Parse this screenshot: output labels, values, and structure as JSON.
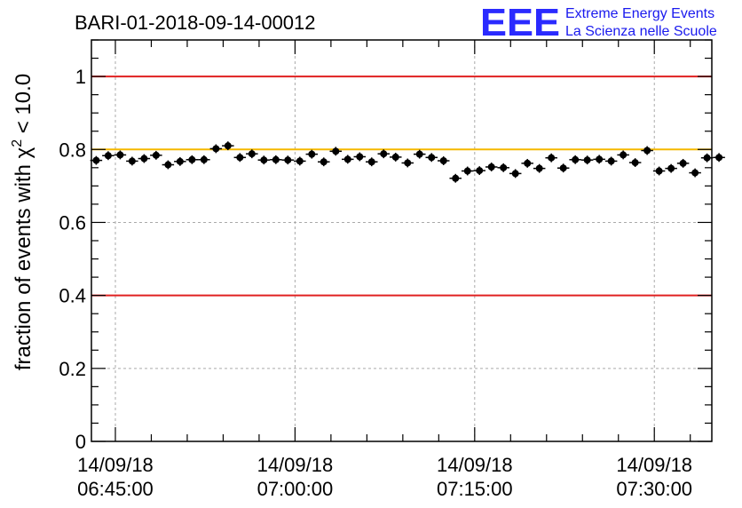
{
  "chart_data": {
    "type": "scatter",
    "title": "BARI-01-2018-09-14-00012",
    "ylabel": "fraction of events with χ² < 10.0",
    "ylabel_main": "fraction of events with χ",
    "ylabel_sup": "2",
    "ylabel_tail": " < 10.0",
    "xlabel": "",
    "ylim": [
      0,
      1.1
    ],
    "xlim_minutes": [
      -2,
      49.8
    ],
    "yticks": [
      0,
      0.2,
      0.4,
      0.6,
      0.8,
      1
    ],
    "ytick_labels": [
      "0",
      "0.2",
      "0.4",
      "0.6",
      "0.8",
      "1"
    ],
    "xticks": [
      {
        "minutes": 0,
        "date": "14/09/18",
        "time": "06:45:00"
      },
      {
        "minutes": 15,
        "date": "14/09/18",
        "time": "07:00:00"
      },
      {
        "minutes": 30,
        "date": "14/09/18",
        "time": "07:15:00"
      },
      {
        "minutes": 45,
        "date": "14/09/18",
        "time": "07:30:00"
      }
    ],
    "grid": true,
    "reference_lines": [
      {
        "y": 1.0,
        "color": "#e02020"
      },
      {
        "y": 0.8,
        "color": "#f5b800"
      },
      {
        "y": 0.4,
        "color": "#e02020"
      }
    ],
    "series": [
      {
        "name": "fraction",
        "x_start_minutes": -1.6,
        "x_step_minutes": 1.0,
        "values": [
          0.77,
          0.783,
          0.785,
          0.768,
          0.775,
          0.784,
          0.758,
          0.767,
          0.772,
          0.772,
          0.802,
          0.81,
          0.778,
          0.788,
          0.771,
          0.772,
          0.771,
          0.768,
          0.787,
          0.766,
          0.795,
          0.773,
          0.78,
          0.766,
          0.788,
          0.779,
          0.763,
          0.787,
          0.778,
          0.769,
          0.721,
          0.741,
          0.742,
          0.752,
          0.75,
          0.734,
          0.762,
          0.748,
          0.777,
          0.749,
          0.772,
          0.771,
          0.773,
          0.768,
          0.785,
          0.764,
          0.797,
          0.741,
          0.748,
          0.762,
          0.736,
          0.777,
          0.778
        ],
        "x_err_minutes": 0.5,
        "y_err": 0.012,
        "color": "#000000"
      }
    ]
  },
  "logo": {
    "letters": "EEE",
    "line1": "Extreme Energy Events",
    "line2": "La Scienza nelle Scuole",
    "color": "#2a2aff"
  }
}
